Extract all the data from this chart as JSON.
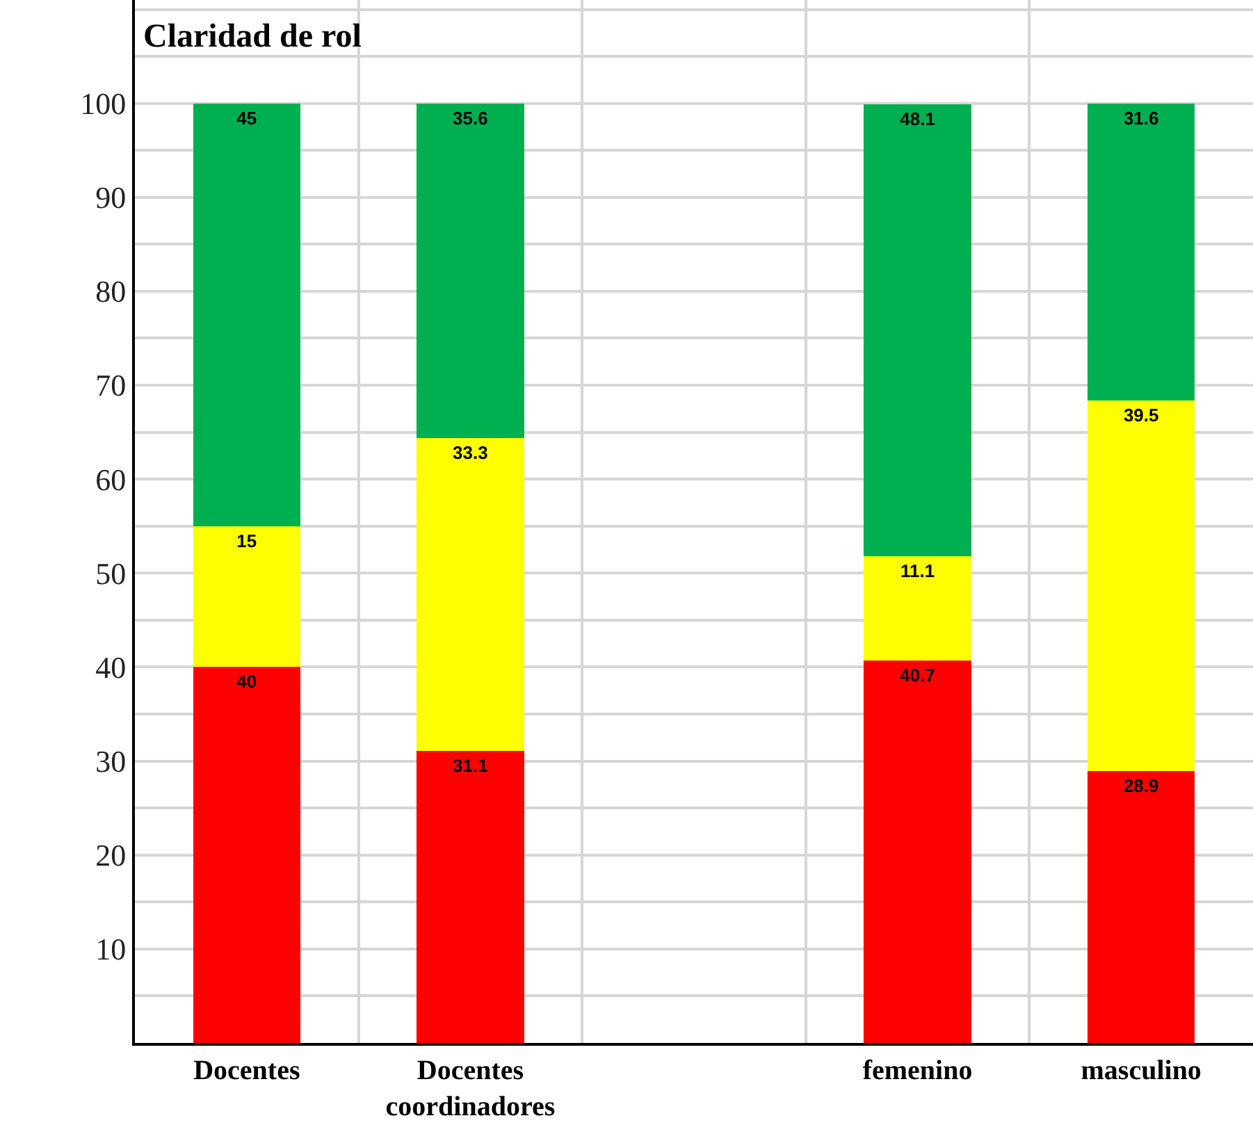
{
  "chart_data": {
    "type": "bar",
    "title": "Claridad de rol",
    "categories": [
      "Docentes",
      "Docentes coordinadores",
      null,
      "femenino",
      "masculino"
    ],
    "stacked": true,
    "series": [
      {
        "color": "#ff0000",
        "values": [
          40,
          31.1,
          null,
          40.7,
          28.9
        ]
      },
      {
        "color": "#ffff00",
        "values": [
          15,
          33.3,
          null,
          11.1,
          39.5
        ]
      },
      {
        "color": "#00b050",
        "values": [
          45,
          35.6,
          null,
          48.1,
          31.6
        ]
      }
    ],
    "ylim": [
      0,
      111
    ],
    "yticks": [
      {
        "value": 5,
        "label": null
      },
      10,
      {
        "value": 15,
        "label": null
      },
      20,
      {
        "value": 25,
        "label": null
      },
      30,
      {
        "value": 35,
        "label": null
      },
      40,
      {
        "value": 45,
        "label": null
      },
      50,
      {
        "value": 55,
        "label": null
      },
      60,
      {
        "value": 65,
        "label": null
      },
      70,
      {
        "value": 75,
        "label": null
      },
      80,
      {
        "value": 85,
        "label": null
      },
      90,
      {
        "value": 95,
        "label": null
      },
      100,
      {
        "value": 105,
        "label": null
      },
      {
        "value": 110,
        "label": null
      }
    ],
    "grid": true,
    "data_labels": true
  }
}
